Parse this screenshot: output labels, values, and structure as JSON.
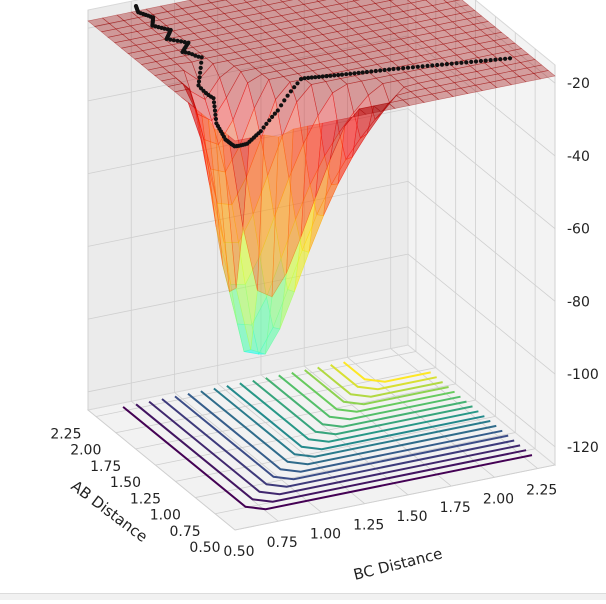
{
  "chart_data": {
    "type": "surface3d",
    "title": "",
    "xlabel": "AB Distance",
    "ylabel": "BC Distance",
    "zlabel": "",
    "x_ticks": [
      "0.50",
      "0.75",
      "1.00",
      "1.25",
      "1.50",
      "1.75",
      "2.00",
      "2.25"
    ],
    "y_ticks": [
      "0.50",
      "0.75",
      "1.00",
      "1.25",
      "1.50",
      "1.75",
      "2.00",
      "2.25"
    ],
    "z_ticks": [
      "-20",
      "-40",
      "-60",
      "-80",
      "-100",
      "-120"
    ],
    "xlim": [
      0.5,
      2.35
    ],
    "ylim": [
      0.5,
      2.35
    ],
    "zlim": [
      -125,
      -15
    ],
    "surface": {
      "colormap": "jet",
      "alpha": 0.35,
      "function": "LEPS-like potential energy surface with a single minimum valley along both axes"
    },
    "contour": {
      "colormap": "viridis",
      "offset_z": -125,
      "levels": 18
    },
    "trajectory": {
      "style": "black dotted",
      "ab_distance": [
        0.74,
        0.78,
        0.82,
        0.86,
        0.9,
        0.93,
        0.96,
        0.99,
        1.02,
        1.05,
        1.09,
        1.13,
        1.18,
        1.23,
        1.3,
        1.38,
        1.46,
        1.55,
        1.64,
        1.74,
        1.84,
        1.94,
        2.04,
        2.14,
        2.24,
        2.34
      ],
      "bc_distance": [
        2.2,
        2.05,
        1.9,
        1.75,
        1.6,
        1.46,
        1.33,
        1.21,
        1.1,
        1.0,
        0.92,
        0.86,
        0.81,
        0.78,
        0.76,
        0.78,
        0.73,
        0.79,
        0.72,
        0.8,
        0.72,
        0.79,
        0.73,
        0.78,
        0.74,
        0.77
      ]
    },
    "grid": true,
    "view": {
      "elev": 20,
      "azim": -20
    }
  }
}
